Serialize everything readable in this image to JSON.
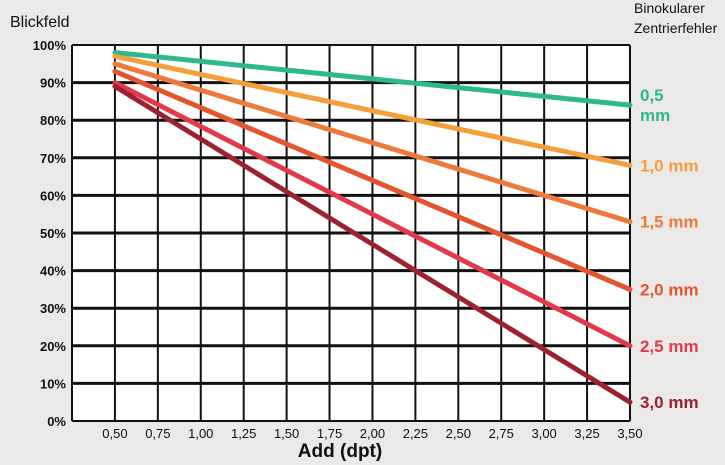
{
  "chart_data": {
    "type": "line",
    "ylabel": "Blickfeld",
    "xlabel": "Add (dpt)",
    "legend_title": [
      "Binokularer",
      "Zentrierfehler"
    ],
    "x_tick_labels": [
      "0,50",
      "0,75",
      "1,00",
      "1,25",
      "1,50",
      "1,75",
      "2,00",
      "2,25",
      "2,50",
      "2,75",
      "3,00",
      "3,25",
      "3,50"
    ],
    "y_tick_labels": [
      "100%",
      "90%",
      "80%",
      "70%",
      "60%",
      "50%",
      "40%",
      "30%",
      "20%",
      "10%",
      "0%"
    ],
    "xlim": [
      0.25,
      3.5
    ],
    "ylim": [
      0,
      100
    ],
    "grid": true,
    "legend_placement": "right, at line ends",
    "series": [
      {
        "name": "0,5 mm",
        "label_lines": [
          "0,5",
          "mm"
        ],
        "color": "#2db88f",
        "x": [
          0.5,
          3.5
        ],
        "y": [
          98,
          84
        ]
      },
      {
        "name": "1,0 mm",
        "label_lines": [
          "1,0 mm"
        ],
        "color": "#f2a03c",
        "x": [
          0.5,
          3.5
        ],
        "y": [
          97,
          68
        ]
      },
      {
        "name": "1,5 mm",
        "label_lines": [
          "1,5 mm"
        ],
        "color": "#ed7a3c",
        "x": [
          0.5,
          3.5
        ],
        "y": [
          95,
          53
        ]
      },
      {
        "name": "2,0 mm",
        "label_lines": [
          "2,0 mm"
        ],
        "color": "#e2552e",
        "x": [
          0.5,
          3.5
        ],
        "y": [
          93,
          35
        ]
      },
      {
        "name": "2,5 mm",
        "label_lines": [
          "2,5 mm"
        ],
        "color": "#e23a4a",
        "x": [
          0.5,
          3.5
        ],
        "y": [
          90,
          20
        ]
      },
      {
        "name": "3,0 mm",
        "label_lines": [
          "3,0 mm"
        ],
        "color": "#9b2230",
        "x": [
          0.5,
          3.5
        ],
        "y": [
          89,
          5
        ]
      }
    ]
  }
}
